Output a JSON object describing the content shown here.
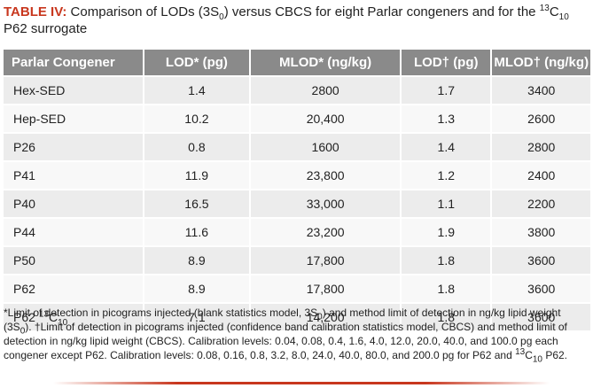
{
  "caption": {
    "label": "TABLE IV:",
    "text_a": " Comparison of LODs (3S",
    "sub_a": "0",
    "text_b": ") versus CBCS for eight Parlar congeners and for the ",
    "sup_b": "13",
    "text_c": "C",
    "sub_c": "10",
    "text_d": " P62 surrogate"
  },
  "table": {
    "headers": [
      "Parlar Congener",
      "LOD* (pg)",
      "MLOD* (ng/kg)",
      "LOD† (pg)",
      "MLOD† (ng/kg)"
    ],
    "rows": [
      {
        "name": "Hex-SED",
        "lod1": "1.4",
        "mlod1": "2800",
        "lod2": "1.7",
        "mlod2": "3400"
      },
      {
        "name": "Hep-SED",
        "lod1": "10.2",
        "mlod1": "20,400",
        "lod2": "1.3",
        "mlod2": "2600"
      },
      {
        "name": "P26",
        "lod1": "0.8",
        "mlod1": "1600",
        "lod2": "1.4",
        "mlod2": "2800"
      },
      {
        "name": "P41",
        "lod1": "11.9",
        "mlod1": "23,800",
        "lod2": "1.2",
        "mlod2": "2400"
      },
      {
        "name": "P40",
        "lod1": "16.5",
        "mlod1": "33,000",
        "lod2": "1.1",
        "mlod2": "2200"
      },
      {
        "name": "P44",
        "lod1": "11.6",
        "mlod1": "23,200",
        "lod2": "1.9",
        "mlod2": "3800"
      },
      {
        "name": "P50",
        "lod1": "8.9",
        "mlod1": "17,800",
        "lod2": "1.8",
        "mlod2": "3600"
      },
      {
        "name": "P62",
        "lod1": "8.9",
        "mlod1": "17,800",
        "lod2": "1.8",
        "mlod2": "3600"
      }
    ],
    "last_row": {
      "name": "P62 ",
      "name_sup": "13",
      "name_mid": "C",
      "name_sub": "10",
      "lod1": "7.1",
      "mlod1": "14,200",
      "lod2": "1.8",
      "mlod2": "3600"
    }
  },
  "footnote": {
    "t1": "*Limit of detection in picograms injected (blank statistics model, 3S",
    "s1": "0",
    "t2": ") and method limit of detection in ng/kg lipid weight (3S",
    "s2": "0",
    "t3": "). †Limit of detection in picograms injected (confidence band calibration statistics model, CBCS) and method limit of detection in ng/kg lipid weight (CBCS). Calibration levels: 0.04, 0.08, 0.4, 1.6, 4.0, 12.0, 20.0, 40.0, and 100.0 pg each congener except P62. Calibration levels: 0.08, 0.16, 0.8, 3.2, 8.0, 24.0, 40.0, 80.0, and 200.0 pg for P62 and ",
    "sup3": "13",
    "t4": "C",
    "sub4": "10",
    "t5": " P62."
  },
  "colors": {
    "label_red": "#c8371e",
    "header_gray": "#8a8a8a",
    "row_odd": "#ececec",
    "row_even": "#f8f8f8"
  }
}
